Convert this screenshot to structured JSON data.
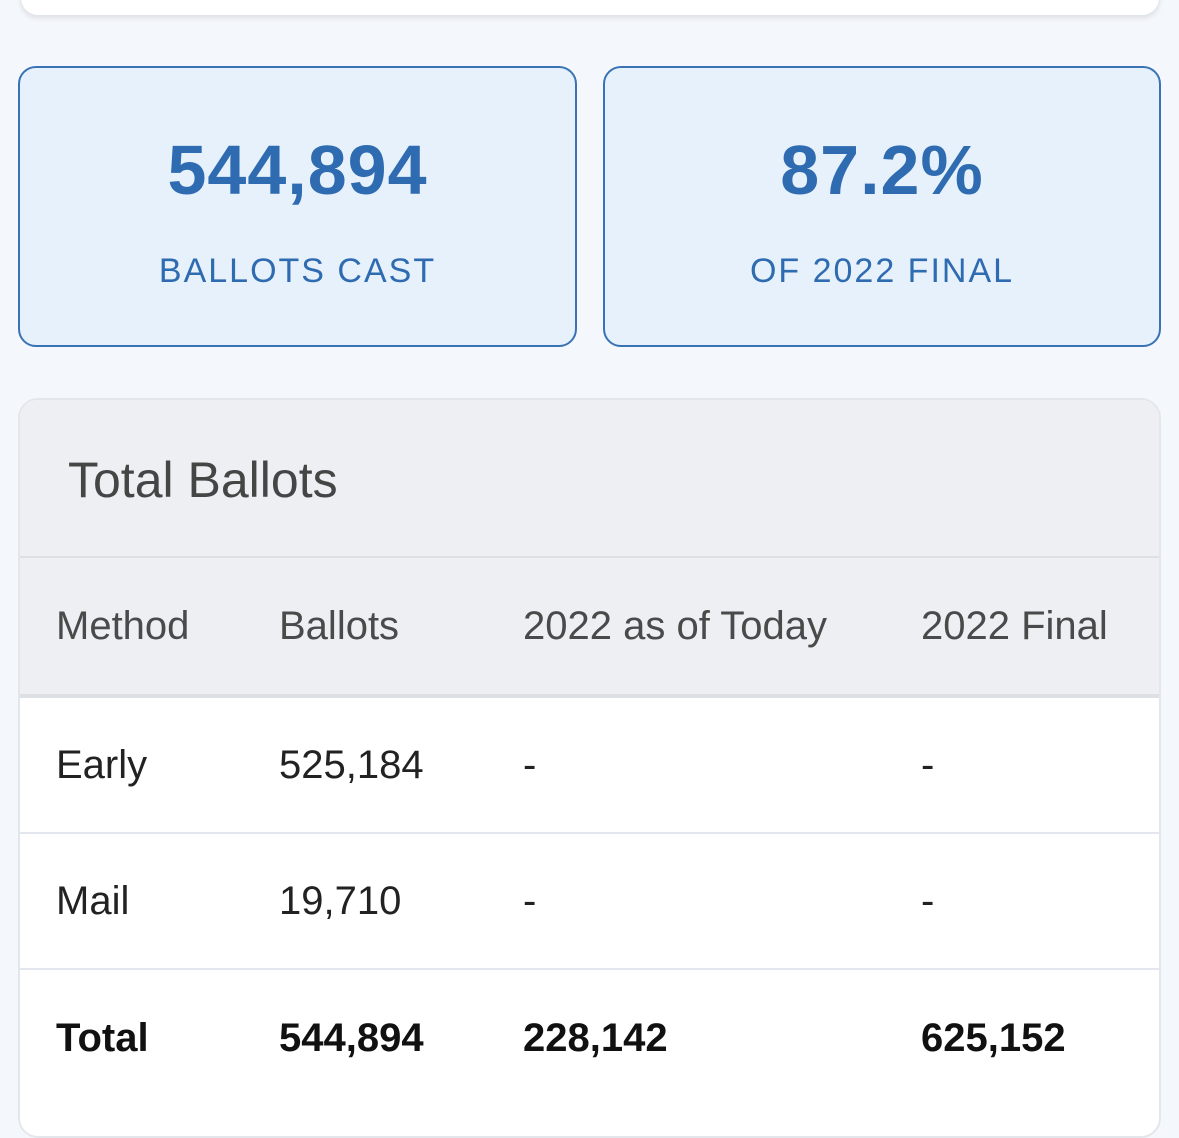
{
  "stats": {
    "ballots_cast": {
      "value": "544,894",
      "label": "BALLOTS CAST"
    },
    "of_2022_final": {
      "value": "87.2%",
      "label": "OF 2022 FINAL"
    }
  },
  "table": {
    "title": "Total Ballots",
    "columns": [
      "Method",
      "Ballots",
      "2022 as of Today",
      "2022 Final"
    ],
    "rows": [
      [
        "Early",
        "525,184",
        "-",
        "-"
      ],
      [
        "Mail",
        "19,710",
        "-",
        "-"
      ]
    ],
    "total": [
      "Total",
      "544,894",
      "228,142",
      "625,152"
    ]
  },
  "colors": {
    "accent": "#2e6bb0",
    "card_bg": "#e6f1fb",
    "page_bg": "#f4f7fb"
  }
}
